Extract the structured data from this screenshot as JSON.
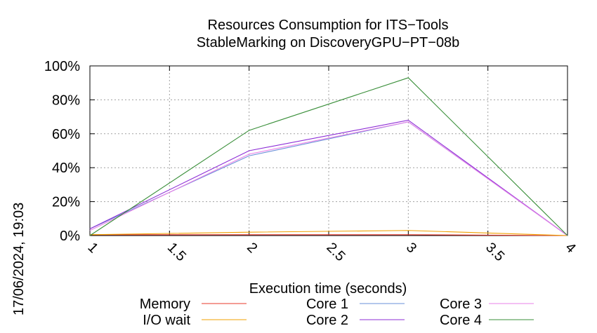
{
  "chart_data": {
    "type": "line",
    "title": "Resources Consumption for ITS−Tools",
    "subtitle": "StableMarking on DiscoveryGPU−PT−08b",
    "xlabel": "Execution time (seconds)",
    "ylabel": "",
    "timestamp": "17/06/2024, 19:03",
    "x": [
      1,
      2,
      3,
      4
    ],
    "xlim": [
      1,
      4
    ],
    "ylim": [
      0,
      100
    ],
    "xticks": [
      "1",
      "1.5",
      "2",
      "2.5",
      "3",
      "3.5",
      "4"
    ],
    "yticks": [
      "0%",
      "20%",
      "40%",
      "60%",
      "80%",
      "100%"
    ],
    "grid": true,
    "legend_position": "bottom",
    "series": [
      {
        "name": "Memory",
        "color": "#e8392b",
        "values": [
          0.5,
          0.5,
          0.5,
          0
        ]
      },
      {
        "name": "I/O wait",
        "color": "#f0a000",
        "values": [
          0.5,
          2,
          3,
          0
        ]
      },
      {
        "name": "Core 1",
        "color": "#6a8fd8",
        "values": [
          4,
          47,
          67,
          0
        ]
      },
      {
        "name": "Core 2",
        "color": "#8c2cd6",
        "values": [
          4,
          50,
          68,
          0
        ]
      },
      {
        "name": "Core 3",
        "color": "#e880e8",
        "values": [
          3,
          48,
          67,
          0
        ]
      },
      {
        "name": "Core 4",
        "color": "#3a8f3a",
        "values": [
          0,
          62,
          93,
          0
        ]
      }
    ]
  }
}
